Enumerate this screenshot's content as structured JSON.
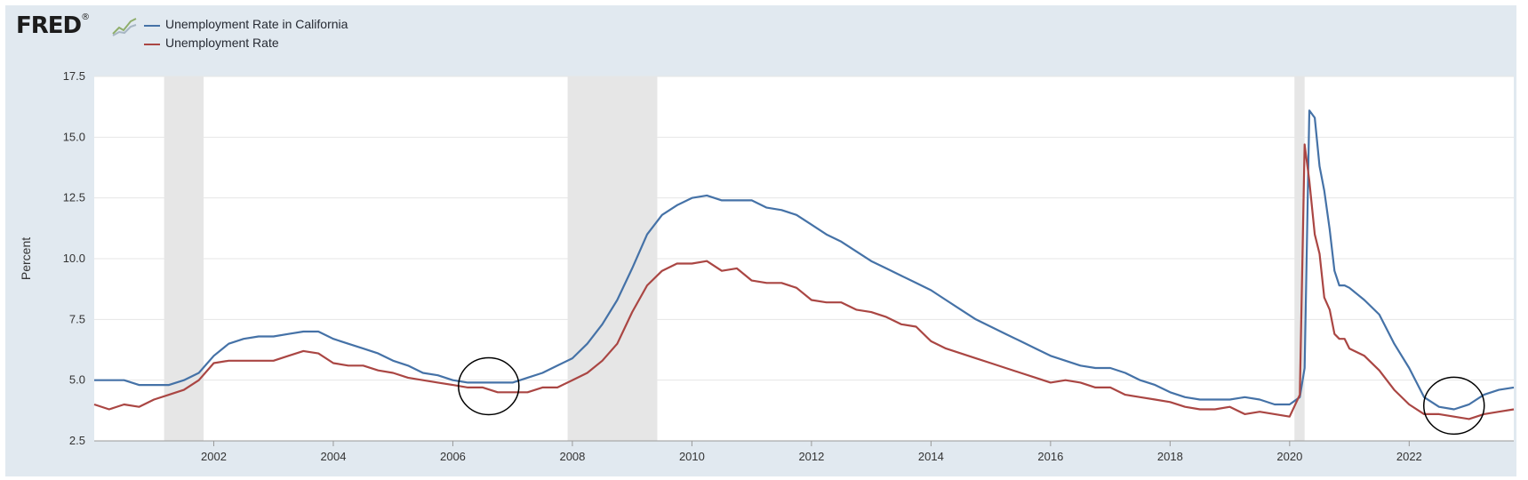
{
  "header": {
    "logo_text": "FRED",
    "logo_registered": "®",
    "logo_icon": "line-chart-icon"
  },
  "legend": {
    "items": [
      {
        "label": "Unemployment Rate in California",
        "color": "#4572a7"
      },
      {
        "label": "Unemployment Rate",
        "color": "#aa4643"
      }
    ]
  },
  "colors": {
    "panel_background": "#e1e9f0",
    "plot_background": "#ffffff",
    "recession_shading": "#e6e6e6",
    "gridline": "#e6e6e6",
    "annotation_circle": "#000000"
  },
  "chart_data": {
    "type": "line",
    "xlabel": "",
    "ylabel": "Percent",
    "ylim": [
      2.5,
      17.5
    ],
    "yticks": [
      2.5,
      5.0,
      7.5,
      10.0,
      12.5,
      15.0,
      17.5
    ],
    "ytick_labels": [
      "2.5",
      "5.0",
      "7.5",
      "10.0",
      "12.5",
      "15.0",
      "17.5"
    ],
    "xlim": [
      2000.0,
      2023.75
    ],
    "xticks": [
      2002,
      2004,
      2006,
      2008,
      2010,
      2012,
      2014,
      2016,
      2018,
      2020,
      2022
    ],
    "xtick_labels": [
      "2002",
      "2004",
      "2006",
      "2008",
      "2010",
      "2012",
      "2014",
      "2016",
      "2018",
      "2020",
      "2022"
    ],
    "grid": "horizontal",
    "legend_position": "top-left",
    "recessions": [
      [
        2001.17,
        2001.83
      ],
      [
        2007.92,
        2009.42
      ],
      [
        2020.08,
        2020.25
      ]
    ],
    "annotations": [
      {
        "type": "circle",
        "x": 2006.6,
        "y": 4.75
      },
      {
        "type": "circle",
        "x": 2022.75,
        "y": 3.95
      }
    ],
    "series": [
      {
        "name": "Unemployment Rate in California",
        "color": "#4572a7",
        "points": [
          [
            2000.0,
            5.0
          ],
          [
            2000.25,
            5.0
          ],
          [
            2000.5,
            5.0
          ],
          [
            2000.75,
            4.8
          ],
          [
            2001.0,
            4.8
          ],
          [
            2001.25,
            4.8
          ],
          [
            2001.5,
            5.0
          ],
          [
            2001.75,
            5.3
          ],
          [
            2002.0,
            6.0
          ],
          [
            2002.25,
            6.5
          ],
          [
            2002.5,
            6.7
          ],
          [
            2002.75,
            6.8
          ],
          [
            2003.0,
            6.8
          ],
          [
            2003.25,
            6.9
          ],
          [
            2003.5,
            7.0
          ],
          [
            2003.75,
            7.0
          ],
          [
            2004.0,
            6.7
          ],
          [
            2004.25,
            6.5
          ],
          [
            2004.5,
            6.3
          ],
          [
            2004.75,
            6.1
          ],
          [
            2005.0,
            5.8
          ],
          [
            2005.25,
            5.6
          ],
          [
            2005.5,
            5.3
          ],
          [
            2005.75,
            5.2
          ],
          [
            2006.0,
            5.0
          ],
          [
            2006.25,
            4.9
          ],
          [
            2006.5,
            4.9
          ],
          [
            2006.75,
            4.9
          ],
          [
            2007.0,
            4.9
          ],
          [
            2007.25,
            5.1
          ],
          [
            2007.5,
            5.3
          ],
          [
            2007.75,
            5.6
          ],
          [
            2008.0,
            5.9
          ],
          [
            2008.25,
            6.5
          ],
          [
            2008.5,
            7.3
          ],
          [
            2008.75,
            8.3
          ],
          [
            2009.0,
            9.6
          ],
          [
            2009.25,
            11.0
          ],
          [
            2009.5,
            11.8
          ],
          [
            2009.75,
            12.2
          ],
          [
            2010.0,
            12.5
          ],
          [
            2010.25,
            12.6
          ],
          [
            2010.5,
            12.4
          ],
          [
            2010.75,
            12.4
          ],
          [
            2011.0,
            12.4
          ],
          [
            2011.25,
            12.1
          ],
          [
            2011.5,
            12.0
          ],
          [
            2011.75,
            11.8
          ],
          [
            2012.0,
            11.4
          ],
          [
            2012.25,
            11.0
          ],
          [
            2012.5,
            10.7
          ],
          [
            2012.75,
            10.3
          ],
          [
            2013.0,
            9.9
          ],
          [
            2013.25,
            9.6
          ],
          [
            2013.5,
            9.3
          ],
          [
            2013.75,
            9.0
          ],
          [
            2014.0,
            8.7
          ],
          [
            2014.25,
            8.3
          ],
          [
            2014.5,
            7.9
          ],
          [
            2014.75,
            7.5
          ],
          [
            2015.0,
            7.2
          ],
          [
            2015.25,
            6.9
          ],
          [
            2015.5,
            6.6
          ],
          [
            2015.75,
            6.3
          ],
          [
            2016.0,
            6.0
          ],
          [
            2016.25,
            5.8
          ],
          [
            2016.5,
            5.6
          ],
          [
            2016.75,
            5.5
          ],
          [
            2017.0,
            5.5
          ],
          [
            2017.25,
            5.3
          ],
          [
            2017.5,
            5.0
          ],
          [
            2017.75,
            4.8
          ],
          [
            2018.0,
            4.5
          ],
          [
            2018.25,
            4.3
          ],
          [
            2018.5,
            4.2
          ],
          [
            2018.75,
            4.2
          ],
          [
            2019.0,
            4.2
          ],
          [
            2019.25,
            4.3
          ],
          [
            2019.5,
            4.2
          ],
          [
            2019.75,
            4.0
          ],
          [
            2020.0,
            4.0
          ],
          [
            2020.17,
            4.3
          ],
          [
            2020.25,
            5.5
          ],
          [
            2020.33,
            16.1
          ],
          [
            2020.42,
            15.8
          ],
          [
            2020.5,
            13.8
          ],
          [
            2020.58,
            12.8
          ],
          [
            2020.67,
            11.2
          ],
          [
            2020.75,
            9.5
          ],
          [
            2020.83,
            8.9
          ],
          [
            2020.92,
            8.9
          ],
          [
            2021.0,
            8.8
          ],
          [
            2021.25,
            8.3
          ],
          [
            2021.5,
            7.7
          ],
          [
            2021.75,
            6.5
          ],
          [
            2022.0,
            5.5
          ],
          [
            2022.25,
            4.3
          ],
          [
            2022.5,
            3.9
          ],
          [
            2022.75,
            3.8
          ],
          [
            2023.0,
            4.0
          ],
          [
            2023.25,
            4.4
          ],
          [
            2023.5,
            4.6
          ],
          [
            2023.75,
            4.7
          ]
        ]
      },
      {
        "name": "Unemployment Rate",
        "color": "#aa4643",
        "points": [
          [
            2000.0,
            4.0
          ],
          [
            2000.25,
            3.8
          ],
          [
            2000.5,
            4.0
          ],
          [
            2000.75,
            3.9
          ],
          [
            2001.0,
            4.2
          ],
          [
            2001.25,
            4.4
          ],
          [
            2001.5,
            4.6
          ],
          [
            2001.75,
            5.0
          ],
          [
            2002.0,
            5.7
          ],
          [
            2002.25,
            5.8
          ],
          [
            2002.5,
            5.8
          ],
          [
            2002.75,
            5.8
          ],
          [
            2003.0,
            5.8
          ],
          [
            2003.25,
            6.0
          ],
          [
            2003.5,
            6.2
          ],
          [
            2003.75,
            6.1
          ],
          [
            2004.0,
            5.7
          ],
          [
            2004.25,
            5.6
          ],
          [
            2004.5,
            5.6
          ],
          [
            2004.75,
            5.4
          ],
          [
            2005.0,
            5.3
          ],
          [
            2005.25,
            5.1
          ],
          [
            2005.5,
            5.0
          ],
          [
            2005.75,
            4.9
          ],
          [
            2006.0,
            4.8
          ],
          [
            2006.25,
            4.7
          ],
          [
            2006.5,
            4.7
          ],
          [
            2006.75,
            4.5
          ],
          [
            2007.0,
            4.5
          ],
          [
            2007.25,
            4.5
          ],
          [
            2007.5,
            4.7
          ],
          [
            2007.75,
            4.7
          ],
          [
            2008.0,
            5.0
          ],
          [
            2008.25,
            5.3
          ],
          [
            2008.5,
            5.8
          ],
          [
            2008.75,
            6.5
          ],
          [
            2009.0,
            7.8
          ],
          [
            2009.25,
            8.9
          ],
          [
            2009.5,
            9.5
          ],
          [
            2009.75,
            9.8
          ],
          [
            2010.0,
            9.8
          ],
          [
            2010.25,
            9.9
          ],
          [
            2010.5,
            9.5
          ],
          [
            2010.75,
            9.6
          ],
          [
            2011.0,
            9.1
          ],
          [
            2011.25,
            9.0
          ],
          [
            2011.5,
            9.0
          ],
          [
            2011.75,
            8.8
          ],
          [
            2012.0,
            8.3
          ],
          [
            2012.25,
            8.2
          ],
          [
            2012.5,
            8.2
          ],
          [
            2012.75,
            7.9
          ],
          [
            2013.0,
            7.8
          ],
          [
            2013.25,
            7.6
          ],
          [
            2013.5,
            7.3
          ],
          [
            2013.75,
            7.2
          ],
          [
            2014.0,
            6.6
          ],
          [
            2014.25,
            6.3
          ],
          [
            2014.5,
            6.1
          ],
          [
            2014.75,
            5.9
          ],
          [
            2015.0,
            5.7
          ],
          [
            2015.25,
            5.5
          ],
          [
            2015.5,
            5.3
          ],
          [
            2015.75,
            5.1
          ],
          [
            2016.0,
            4.9
          ],
          [
            2016.25,
            5.0
          ],
          [
            2016.5,
            4.9
          ],
          [
            2016.75,
            4.7
          ],
          [
            2017.0,
            4.7
          ],
          [
            2017.25,
            4.4
          ],
          [
            2017.5,
            4.3
          ],
          [
            2017.75,
            4.2
          ],
          [
            2018.0,
            4.1
          ],
          [
            2018.25,
            3.9
          ],
          [
            2018.5,
            3.8
          ],
          [
            2018.75,
            3.8
          ],
          [
            2019.0,
            3.9
          ],
          [
            2019.25,
            3.6
          ],
          [
            2019.5,
            3.7
          ],
          [
            2019.75,
            3.6
          ],
          [
            2020.0,
            3.5
          ],
          [
            2020.17,
            4.4
          ],
          [
            2020.25,
            14.7
          ],
          [
            2020.33,
            13.2
          ],
          [
            2020.42,
            11.0
          ],
          [
            2020.5,
            10.2
          ],
          [
            2020.58,
            8.4
          ],
          [
            2020.67,
            7.9
          ],
          [
            2020.75,
            6.9
          ],
          [
            2020.83,
            6.7
          ],
          [
            2020.92,
            6.7
          ],
          [
            2021.0,
            6.3
          ],
          [
            2021.25,
            6.0
          ],
          [
            2021.5,
            5.4
          ],
          [
            2021.75,
            4.6
          ],
          [
            2022.0,
            4.0
          ],
          [
            2022.25,
            3.6
          ],
          [
            2022.5,
            3.6
          ],
          [
            2022.75,
            3.5
          ],
          [
            2023.0,
            3.4
          ],
          [
            2023.25,
            3.6
          ],
          [
            2023.5,
            3.7
          ],
          [
            2023.75,
            3.8
          ]
        ]
      }
    ]
  }
}
